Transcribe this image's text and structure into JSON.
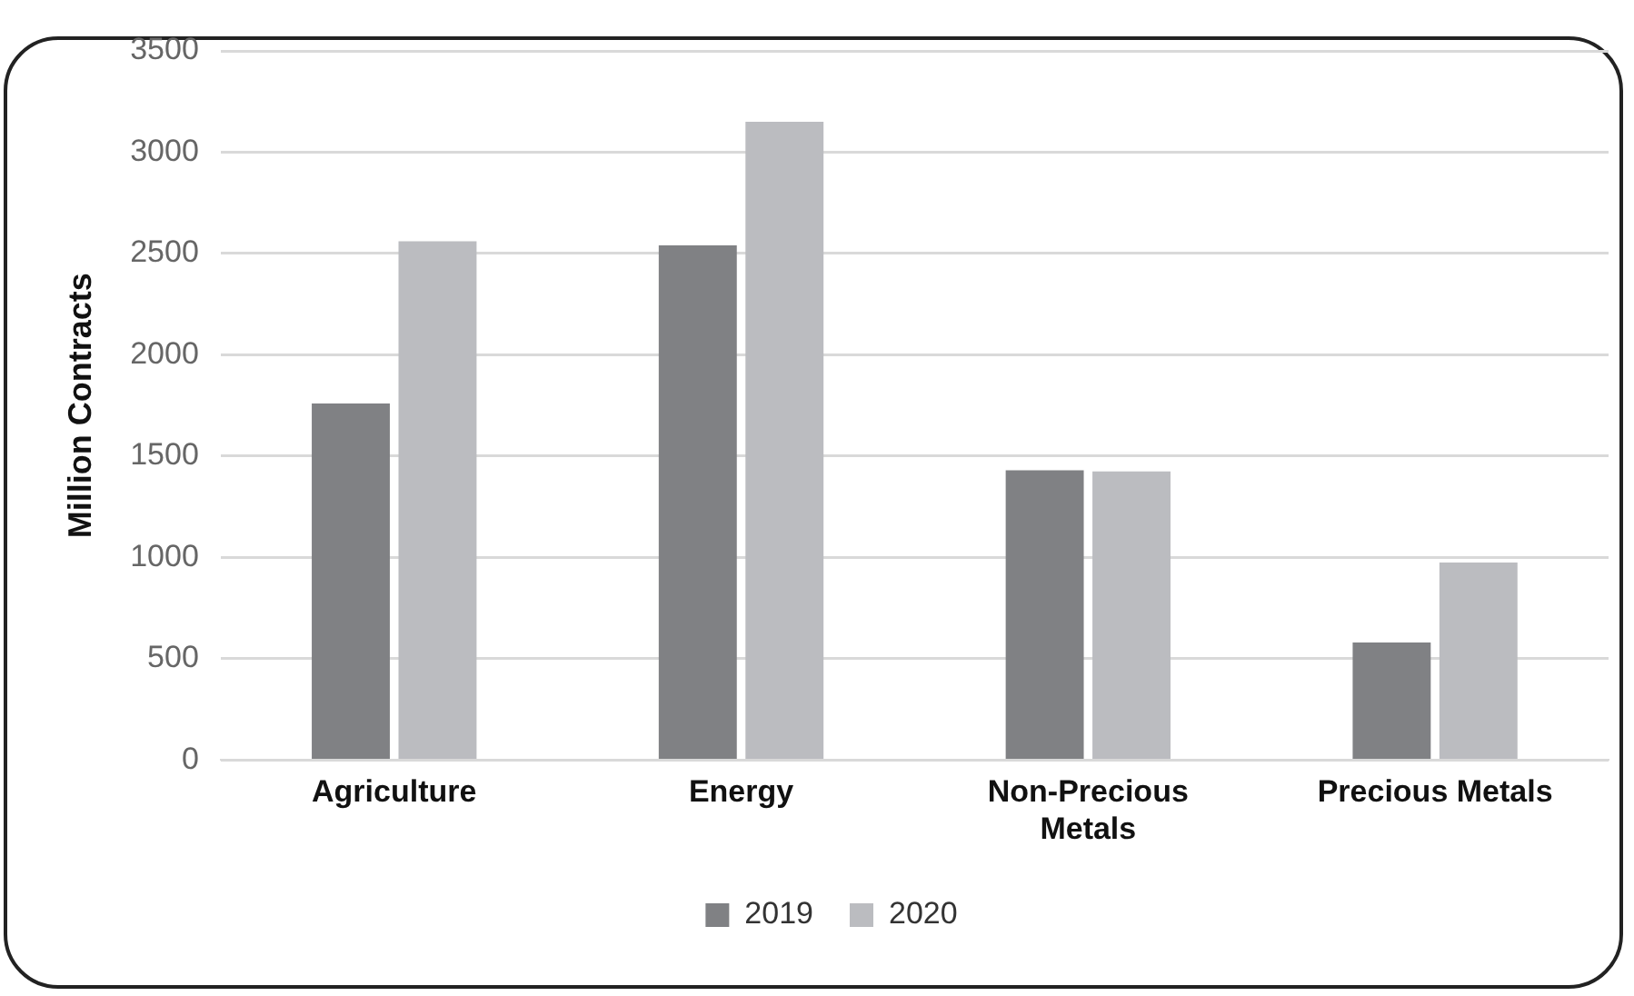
{
  "chart_data": {
    "type": "bar",
    "ylabel": "Million Contracts",
    "categories": [
      "Agriculture",
      "Energy",
      "Non-Precious Metals",
      "Precious Metals"
    ],
    "series": [
      {
        "name": "2019",
        "color": "#808184",
        "values": [
          1760,
          2540,
          1430,
          580
        ]
      },
      {
        "name": "2020",
        "color": "#bbbcc0",
        "values": [
          2560,
          3150,
          1425,
          975
        ]
      }
    ],
    "ylim": [
      0,
      3500
    ],
    "yticks": [
      0,
      500,
      1000,
      1500,
      2000,
      2500,
      3000,
      3500
    ],
    "grid": "y",
    "legend": "bottom"
  }
}
